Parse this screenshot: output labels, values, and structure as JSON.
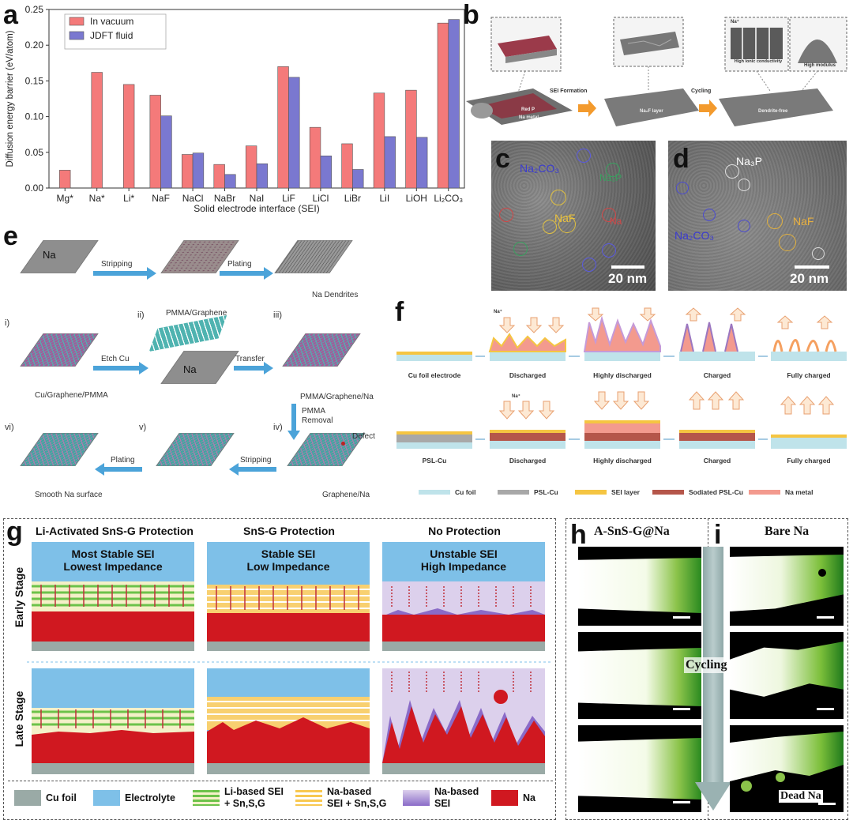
{
  "panels": {
    "a": "a",
    "b": "b",
    "c": "c",
    "d": "d",
    "e": "e",
    "f": "f",
    "g": "g",
    "h": "h",
    "i": "i"
  },
  "chart_data": {
    "type": "bar",
    "title": "",
    "xlabel": "Solid electrode interface (SEI)",
    "ylabel": "Diffusion energy barrier (eV/atom)",
    "ylim": [
      0,
      0.25
    ],
    "yticks": [
      "0.00",
      "0.05",
      "0.10",
      "0.15",
      "0.20",
      "0.25"
    ],
    "categories": [
      "Mg*",
      "Na*",
      "Li*",
      "NaF",
      "NaCl",
      "NaBr",
      "NaI",
      "LiF",
      "LiCl",
      "LiBr",
      "LiI",
      "LiOH",
      "Li2CO3"
    ],
    "category_labels": [
      "Mg*",
      "Na*",
      "Li*",
      "NaF",
      "NaCl",
      "NaBr",
      "NaI",
      "LiF",
      "LiCl",
      "LiBr",
      "LiI",
      "LiOH",
      "Li₂CO₃"
    ],
    "series": [
      {
        "name": "In vacuum",
        "color": "#f47a7a",
        "values": [
          0.025,
          0.162,
          0.145,
          0.13,
          0.047,
          0.033,
          0.059,
          0.17,
          0.085,
          0.062,
          0.133,
          0.137,
          0.231
        ]
      },
      {
        "name": "JDFT fluid",
        "color": "#7a78d0",
        "values": [
          null,
          null,
          null,
          0.101,
          0.049,
          0.019,
          0.034,
          0.155,
          0.045,
          0.026,
          0.072,
          0.071,
          0.236
        ]
      }
    ],
    "legend_position": "top-left"
  },
  "panel_b": {
    "step1": "SEI Formation",
    "step2": "Cycling",
    "layer_label": "Na₂F layer",
    "dendrite_free": "Dendrite-free",
    "red_p": "Red P",
    "na_metal": "Na metal",
    "na_ion": "Na⁺",
    "high_ionic": "High ionic conductivity",
    "high_modulus": "High modulus"
  },
  "panel_c": {
    "na2co3": "Na₂CO₃",
    "naf": "NaF",
    "na3p": "Na₃P",
    "na": "Na",
    "scale": "20 nm"
  },
  "panel_d": {
    "na3p": "Na₃P",
    "na2co3": "Na₂CO₃",
    "naf": "NaF",
    "scale": "20 nm"
  },
  "panel_e": {
    "na": "Na",
    "stripping": "Stripping",
    "plating": "Plating",
    "dendrites": "Na Dendrites",
    "i": "i)",
    "ii": "ii)",
    "iii": "iii)",
    "iv": "iv)",
    "v": "v)",
    "vi": "vi)",
    "pmma_graphene": "PMMA/Graphene",
    "etch": "Etch Cu",
    "transfer": "Transfer",
    "cu_graphene_pmma": "Cu/Graphene/PMMA",
    "pmma_graphene_na": "PMMA/Graphene/Na",
    "pmma": "PMMA",
    "removal": "Removal",
    "defect": "Defect",
    "graphene_na": "Graphene/Na",
    "stripping2": "Stripping",
    "plating2": "Plating",
    "smooth": "Smooth Na surface"
  },
  "panel_f": {
    "row1": [
      "Cu foil electrode",
      "Discharged",
      "Highly discharged",
      "Charged",
      "Fully charged"
    ],
    "row2": [
      "PSL-Cu",
      "Discharged",
      "Highly discharged",
      "Charged",
      "Fully charged"
    ],
    "na_ion": "Na⁺",
    "legend": [
      "Cu foil",
      "PSL-Cu",
      "SEI layer",
      "Sodiated PSL-Cu",
      "Na metal"
    ],
    "legend_colors": [
      "#bfe3ea",
      "#a8a8a8",
      "#f5c542",
      "#b5564a",
      "#f39a8e"
    ]
  },
  "panel_g": {
    "col_titles": [
      "Li-Activated SnS-G Protection",
      "SnS-G Protection",
      "No Protection"
    ],
    "early_heads": [
      [
        "Most Stable SEI",
        "Lowest Impedance"
      ],
      [
        "Stable SEI",
        "Low Impedance"
      ],
      [
        "Unstable SEI",
        "High Impedance"
      ]
    ],
    "row_labels": [
      "Early Stage",
      "Late Stage"
    ],
    "legend": [
      {
        "label": "Cu foil"
      },
      {
        "label": "Electrolyte"
      },
      {
        "label": "Li-based SEI + Sn,S,G"
      },
      {
        "label": "Na-based SEI + Sn,S,G"
      },
      {
        "label": "Na-based SEI"
      },
      {
        "label": "Na"
      }
    ],
    "legend_lines": [
      [
        "Cu foil"
      ],
      [
        "Electrolyte"
      ],
      [
        "Li-based SEI",
        "+ Sn,S,G"
      ],
      [
        "Na-based",
        "SEI + Sn,S,G"
      ],
      [
        "Na-based",
        "SEI"
      ],
      [
        "Na"
      ]
    ]
  },
  "panel_hi": {
    "h_title": "A-SnS-G@Na",
    "i_title": "Bare Na",
    "cycling": "Cycling",
    "dead_na": "Dead Na"
  }
}
